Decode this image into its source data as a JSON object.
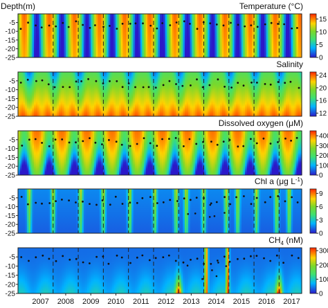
{
  "chart_data": [
    {
      "type": "heatmap",
      "title": "Temperature (°C)",
      "ylabel": "Depth(m)",
      "ylim": [
        -25,
        0
      ],
      "yticks": [
        "-5",
        "-10",
        "-15",
        "-20",
        "-25"
      ],
      "colorbar": {
        "range": [
          0,
          17
        ],
        "ticks": [
          "15",
          "10",
          "5",
          "0"
        ]
      },
      "xlim": [
        2006.6,
        2017.9
      ],
      "pattern": "seasonal",
      "phase": 0.6,
      "colors": [
        "#2b18c9",
        "#00e0ff",
        "#4cdc2e",
        "#ffd400",
        "#ff2a00"
      ]
    },
    {
      "type": "heatmap",
      "title": "Salinity",
      "ylim": [
        -25,
        0
      ],
      "yticks": [
        "-5",
        "-10",
        "-15",
        "-20",
        "-25"
      ],
      "colorbar": {
        "range": [
          11,
          25
        ],
        "ticks": [
          "24",
          "20",
          "16",
          "12"
        ]
      },
      "xlim": [
        2006.6,
        2017.9
      ],
      "pattern": "salinity",
      "phase": 0.3
    },
    {
      "type": "heatmap",
      "title": "Dissolved oxygen (μM)",
      "ylim": [
        -25,
        0
      ],
      "yticks": [
        "-5",
        "-10",
        "-15",
        "-20",
        "-25"
      ],
      "colorbar": {
        "range": [
          0,
          450
        ],
        "ticks": [
          "400",
          "300",
          "200",
          "100",
          "0"
        ]
      },
      "xlim": [
        2006.6,
        2017.9
      ],
      "pattern": "oxygen",
      "phase": 0.1
    },
    {
      "type": "heatmap",
      "title_parts": [
        "Chl a (μg L",
        "-1",
        ")"
      ],
      "ylim": [
        -25,
        0
      ],
      "yticks": [
        "-5",
        "-10",
        "-15",
        "-20",
        "-25"
      ],
      "colorbar": {
        "range": [
          0,
          10
        ],
        "ticks": [
          "9",
          "6",
          "3",
          "0"
        ]
      },
      "xlim": [
        2006.6,
        2017.9
      ],
      "pattern": "chl",
      "blooms": [
        2007.05,
        2008.0,
        2009.1,
        2010.0,
        2011.05,
        2012.05,
        2012.9,
        2013.3,
        2014.0,
        2014.9,
        2015.35,
        2016.1,
        2016.9,
        2017.4
      ],
      "phase": 0.85
    },
    {
      "type": "heatmap",
      "title_parts": [
        "CH",
        "4",
        " (nM)"
      ],
      "ylim": [
        -25,
        0
      ],
      "yticks": [
        "-5",
        "-10",
        "-15",
        "-20",
        "-25"
      ],
      "colorbar": {
        "range": [
          0,
          320
        ],
        "ticks": [
          "300",
          "200",
          "100",
          "0"
        ]
      },
      "xlim": [
        2006.6,
        2017.9
      ],
      "pattern": "methane",
      "plumes": [
        2014.1,
        2014.95
      ],
      "hotspots": [
        2013.0,
        2017.0
      ],
      "phase": 0.45
    }
  ],
  "x_axis": {
    "tick_labels": [
      "2007",
      "2008",
      "2009",
      "2010",
      "2011",
      "2012",
      "2013",
      "2014",
      "2015",
      "2016",
      "2017"
    ],
    "year_dividers": [
      2008,
      2009,
      2010,
      2011,
      2012,
      2013,
      2014,
      2015,
      2016,
      2017
    ]
  }
}
